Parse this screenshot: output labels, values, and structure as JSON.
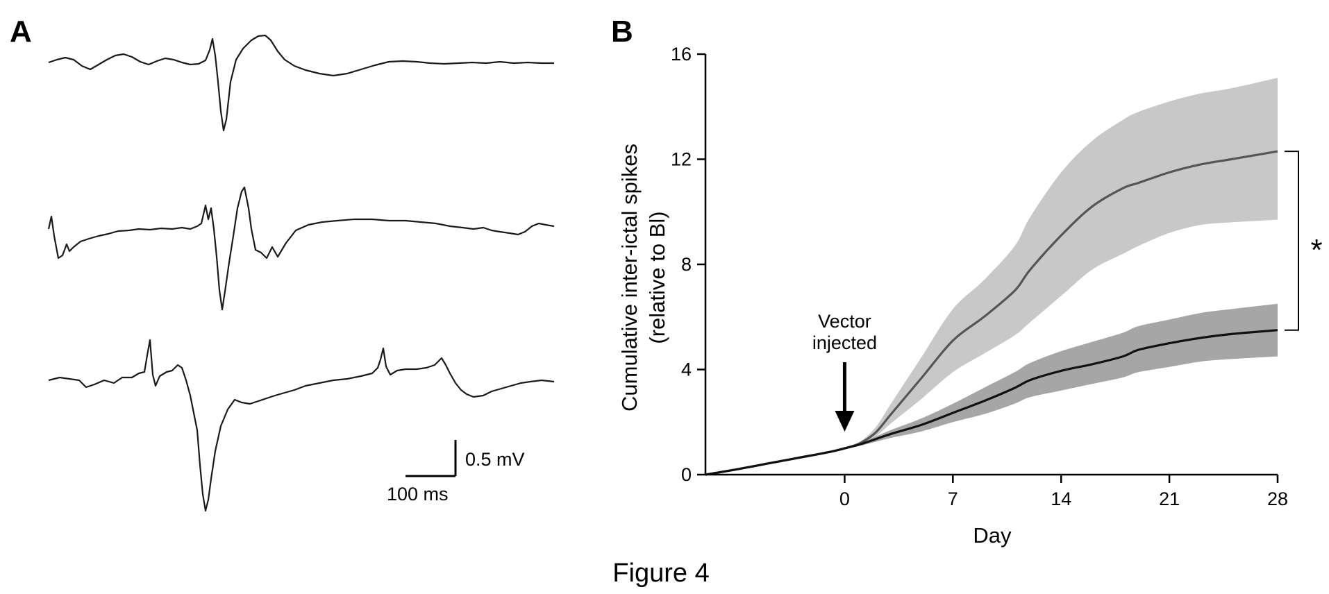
{
  "figure": {
    "caption": "Figure 4",
    "panel_a_label": "A",
    "panel_b_label": "B"
  },
  "panel_a": {
    "scale_bar": {
      "voltage_label": "0.5 mV",
      "time_label": "100 ms"
    }
  },
  "chart_data": {
    "type": "line",
    "title": "",
    "xlabel": "Day",
    "ylabel": "Cumulative inter-ictal spikes",
    "ylabel_line2": "(relative to Bl)",
    "xlim": [
      -9,
      28
    ],
    "ylim": [
      0,
      16
    ],
    "xticks": [
      0,
      7,
      14,
      21,
      28
    ],
    "yticks": [
      0,
      4,
      8,
      12,
      16
    ],
    "grid": false,
    "legend": "none",
    "x": [
      -9,
      -7,
      -5,
      -3,
      -1,
      0,
      1,
      2,
      3,
      5,
      7,
      9,
      11,
      12,
      14,
      16,
      18,
      19,
      21,
      23,
      25,
      28
    ],
    "series": [
      {
        "values": [
          0,
          0.2,
          0.42,
          0.64,
          0.86,
          1.0,
          1.2,
          1.6,
          2.3,
          3.7,
          5.1,
          6.0,
          7.0,
          7.8,
          9.1,
          10.2,
          10.9,
          11.1,
          11.5,
          11.8,
          12.0,
          12.3
        ],
        "band_lower": [
          0,
          0.2,
          0.42,
          0.64,
          0.86,
          1.0,
          1.15,
          1.45,
          1.95,
          2.9,
          3.9,
          4.6,
          5.3,
          5.8,
          6.8,
          7.8,
          8.4,
          8.7,
          9.2,
          9.5,
          9.6,
          9.7
        ],
        "band_upper": [
          0,
          0.2,
          0.42,
          0.64,
          0.86,
          1.0,
          1.25,
          1.8,
          2.7,
          4.5,
          6.3,
          7.4,
          8.7,
          9.8,
          11.5,
          12.7,
          13.5,
          13.8,
          14.2,
          14.5,
          14.7,
          15.1
        ],
        "line_color": "#555555",
        "band_color": "#c8c8c8"
      },
      {
        "values": [
          0,
          0.2,
          0.42,
          0.64,
          0.86,
          1.0,
          1.15,
          1.35,
          1.55,
          1.9,
          2.35,
          2.8,
          3.3,
          3.6,
          3.95,
          4.2,
          4.5,
          4.75,
          5.0,
          5.2,
          5.35,
          5.5
        ],
        "band_lower": [
          0,
          0.2,
          0.42,
          0.64,
          0.86,
          1.0,
          1.1,
          1.25,
          1.4,
          1.65,
          2.0,
          2.3,
          2.7,
          2.95,
          3.2,
          3.45,
          3.7,
          3.9,
          4.1,
          4.3,
          4.4,
          4.5
        ],
        "band_upper": [
          0,
          0.2,
          0.42,
          0.64,
          0.86,
          1.0,
          1.2,
          1.45,
          1.7,
          2.15,
          2.7,
          3.3,
          3.9,
          4.25,
          4.7,
          5.05,
          5.4,
          5.65,
          5.9,
          6.15,
          6.3,
          6.5
        ],
        "line_color": "#111111",
        "band_color": "#a6a6a6"
      }
    ],
    "annotations": {
      "arrow_label_line1": "Vector",
      "arrow_label_line2": "injected",
      "arrow_x": 0,
      "significance": "*",
      "bracket_y": [
        5.5,
        12.3
      ]
    }
  }
}
